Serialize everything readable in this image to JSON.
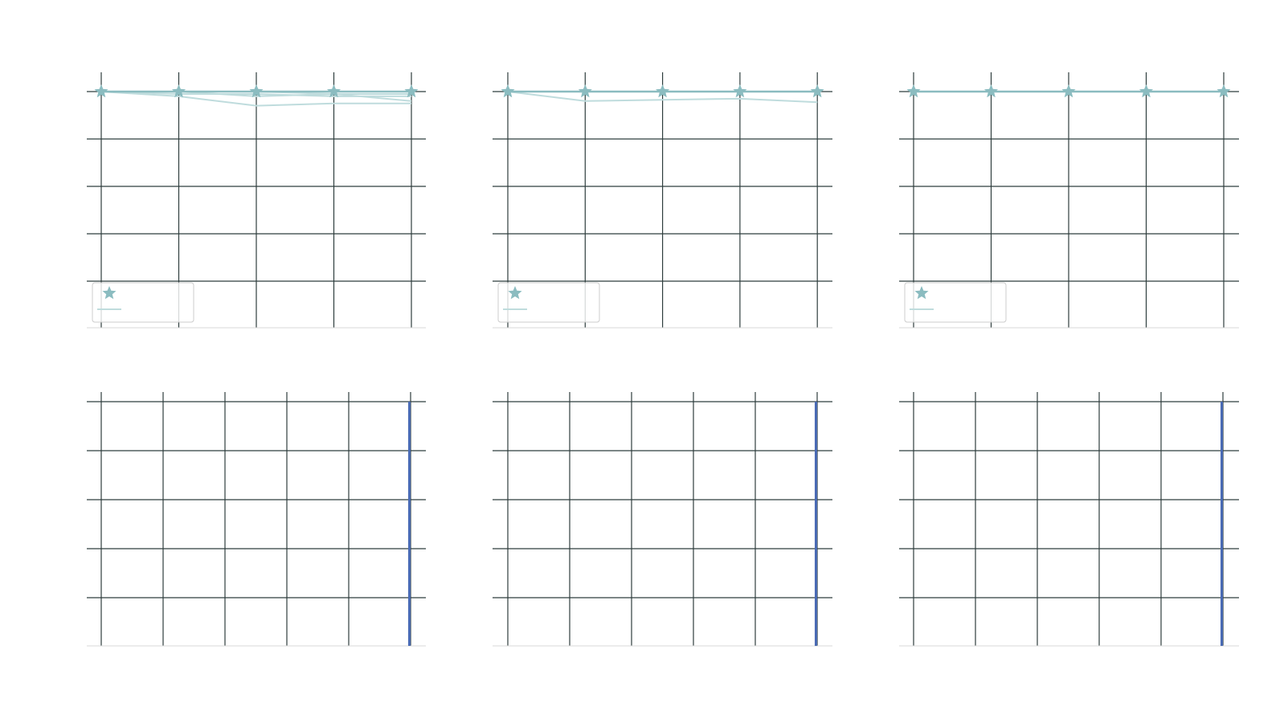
{
  "colors": {
    "grid": "#2f3e3e",
    "axis_baseline": "#d9d9d9",
    "main_series": "#8bbcc0",
    "faint_series": "#bfdcdd",
    "convergence_line": "#4a6bb5",
    "legend_border": "#cccccc"
  },
  "legend_markers": [
    "star",
    "line"
  ],
  "chart_data": [
    {
      "type": "line",
      "panel": "top-left",
      "x": [
        0,
        1,
        2,
        3,
        4
      ],
      "ylim": [
        0,
        1.0
      ],
      "grid": true,
      "legend": "lower-left",
      "series": [
        {
          "role": "mean",
          "marker": "star",
          "values": [
            1.0,
            1.0,
            1.0,
            1.0,
            1.0
          ]
        },
        {
          "role": "trial",
          "values": [
            1.0,
            0.98,
            0.94,
            0.95,
            0.95
          ]
        },
        {
          "role": "trial",
          "values": [
            1.0,
            1.0,
            0.98,
            0.99,
            0.96
          ]
        },
        {
          "role": "trial",
          "values": [
            1.0,
            0.99,
            0.99,
            0.98,
            0.98
          ]
        },
        {
          "role": "trial",
          "values": [
            1.0,
            1.0,
            1.0,
            0.99,
            0.99
          ]
        }
      ]
    },
    {
      "type": "line",
      "panel": "top-middle",
      "x": [
        0,
        1,
        2,
        3,
        4
      ],
      "ylim": [
        0,
        1.0
      ],
      "grid": true,
      "legend": "lower-left",
      "series": [
        {
          "role": "mean",
          "marker": "star",
          "values": [
            1.0,
            1.0,
            1.0,
            1.0,
            1.0
          ]
        },
        {
          "role": "trial",
          "values": [
            1.0,
            0.96,
            0.965,
            0.97,
            0.955
          ]
        }
      ]
    },
    {
      "type": "line",
      "panel": "top-right",
      "x": [
        0,
        1,
        2,
        3,
        4
      ],
      "ylim": [
        0,
        1.0
      ],
      "grid": true,
      "legend": "lower-left",
      "series": [
        {
          "role": "mean",
          "marker": "star",
          "values": [
            1.0,
            1.0,
            1.0,
            1.0,
            1.0
          ]
        }
      ]
    },
    {
      "type": "line",
      "panel": "bottom-left",
      "xlim": [
        0,
        5
      ],
      "ylim": [
        0,
        1.0
      ],
      "grid": true,
      "series": [
        {
          "role": "vertical",
          "x": [
            4.98,
            4.98
          ],
          "values": [
            0,
            1.0
          ]
        }
      ]
    },
    {
      "type": "line",
      "panel": "bottom-middle",
      "xlim": [
        0,
        5
      ],
      "ylim": [
        0,
        1.0
      ],
      "grid": true,
      "series": [
        {
          "role": "vertical",
          "x": [
            4.98,
            4.98
          ],
          "values": [
            0,
            1.0
          ]
        }
      ]
    },
    {
      "type": "line",
      "panel": "bottom-right",
      "xlim": [
        0,
        5
      ],
      "ylim": [
        0,
        1.0
      ],
      "grid": true,
      "series": [
        {
          "role": "vertical",
          "x": [
            4.98,
            4.98
          ],
          "values": [
            0,
            1.0
          ]
        }
      ]
    }
  ]
}
